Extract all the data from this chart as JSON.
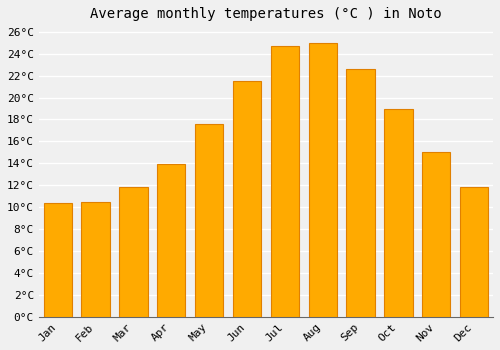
{
  "title": "Average monthly temperatures (°C ) in Noto",
  "months": [
    "Jan",
    "Feb",
    "Mar",
    "Apr",
    "May",
    "Jun",
    "Jul",
    "Aug",
    "Sep",
    "Oct",
    "Nov",
    "Dec"
  ],
  "values": [
    10.4,
    10.5,
    11.8,
    13.9,
    17.6,
    21.5,
    24.7,
    25.0,
    22.6,
    19.0,
    15.0,
    11.8
  ],
  "bar_color": "#FFAA00",
  "bar_edge_color": "#E08000",
  "background_color": "#f0f0f0",
  "grid_color": "#ffffff",
  "ylim": [
    0,
    26
  ],
  "ytick_step": 2,
  "title_fontsize": 10,
  "tick_fontsize": 8,
  "font_family": "monospace"
}
